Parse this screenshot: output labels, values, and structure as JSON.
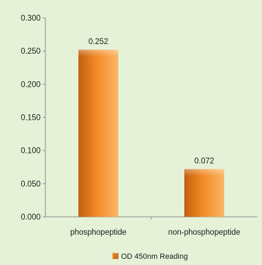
{
  "chart_data": {
    "type": "bar",
    "categories": [
      "phosphopeptide",
      "non-phosphopeptide"
    ],
    "series": [
      {
        "name": "OD 450nm Reading",
        "values": [
          0.252,
          0.072
        ],
        "data_labels": [
          "0.252",
          "0.072"
        ]
      }
    ],
    "ylim": [
      0,
      0.3
    ],
    "yticks": [
      0.0,
      0.05,
      0.1,
      0.15,
      0.2,
      0.25,
      0.3
    ],
    "ytick_labels": [
      "0.000",
      "0.050",
      "0.100",
      "0.150",
      "0.200",
      "0.250",
      "0.300"
    ],
    "xlabel": "",
    "ylabel": "",
    "title": "",
    "grid": false,
    "legend_position": "bottom",
    "colors": {
      "background": "#e6f2d8",
      "bar_dark": "#c25f10",
      "bar_mid": "#f28a25",
      "bar_light": "#fbb766",
      "axis": "#8a8a8a"
    }
  }
}
